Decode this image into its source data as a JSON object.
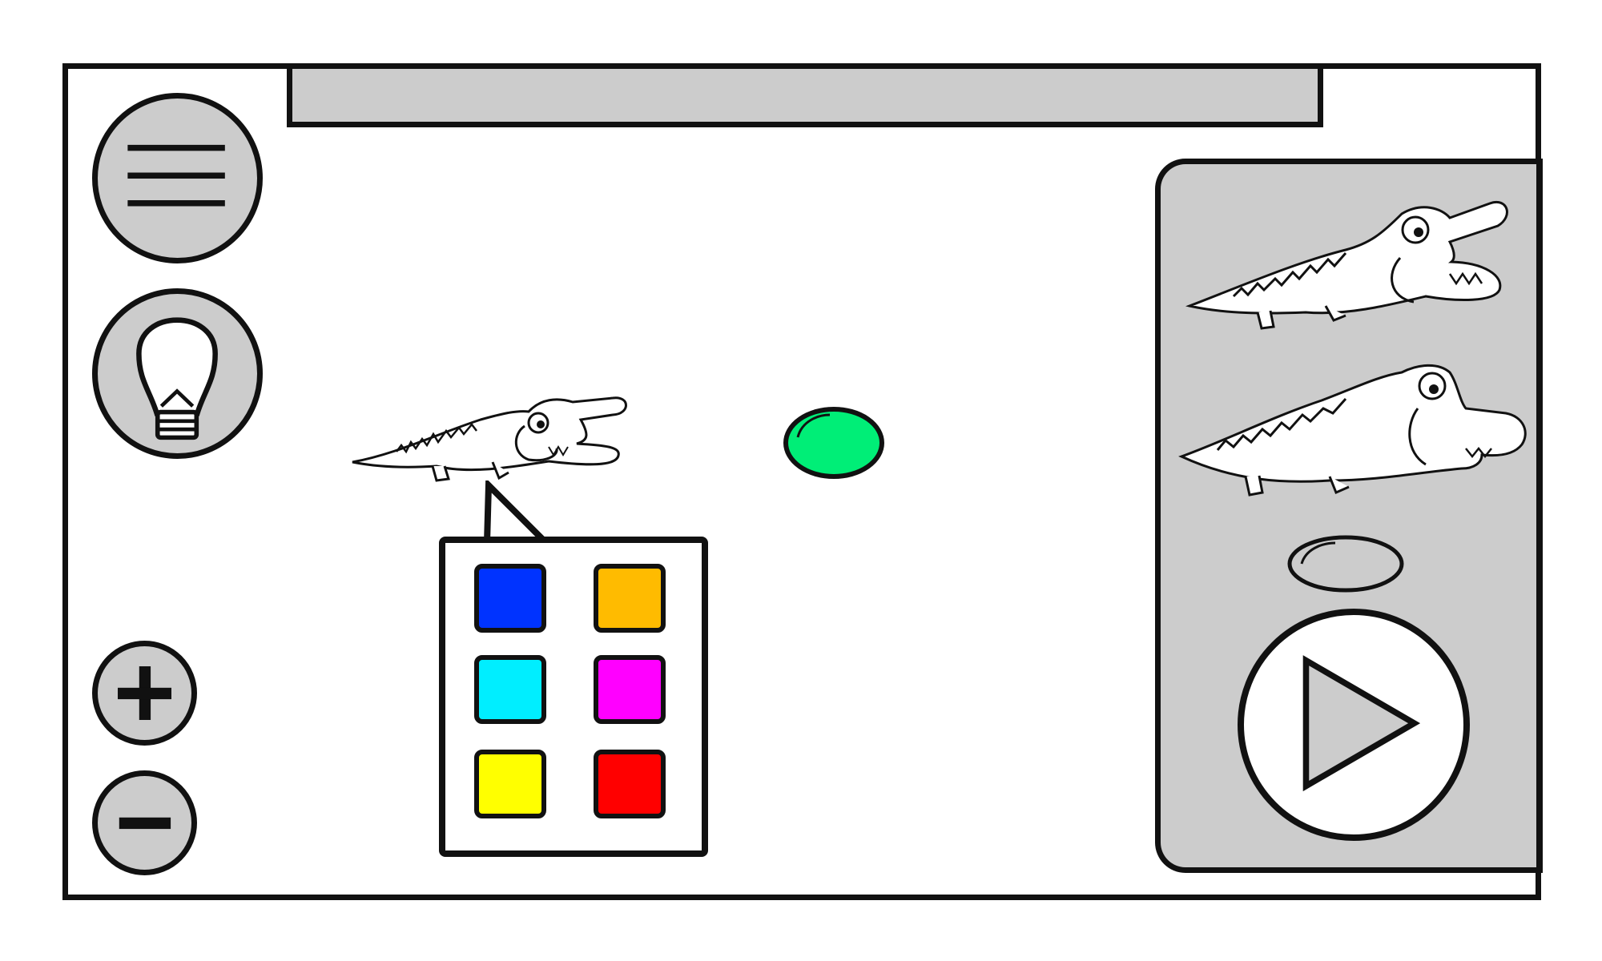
{
  "app": {
    "title_bar_text": ""
  },
  "toolbar": {
    "menu_icon": "hamburger-menu-icon",
    "hint_icon": "lightbulb-icon",
    "zoom_in_icon": "plus-icon",
    "zoom_out_icon": "minus-icon"
  },
  "canvas": {
    "selected_object": "crocodile",
    "egg_color": "#00ee77"
  },
  "palette": {
    "colors": [
      "#0033ff",
      "#ffbb00",
      "#00eeff",
      "#ff00ff",
      "#ffff00",
      "#ff0000"
    ]
  },
  "side_panel": {
    "items": [
      "crocodile-thin",
      "crocodile-fat",
      "egg-gray"
    ],
    "play_icon": "play-icon"
  },
  "theme": {
    "panel_gray": "#cccccc",
    "stroke": "#111111"
  }
}
